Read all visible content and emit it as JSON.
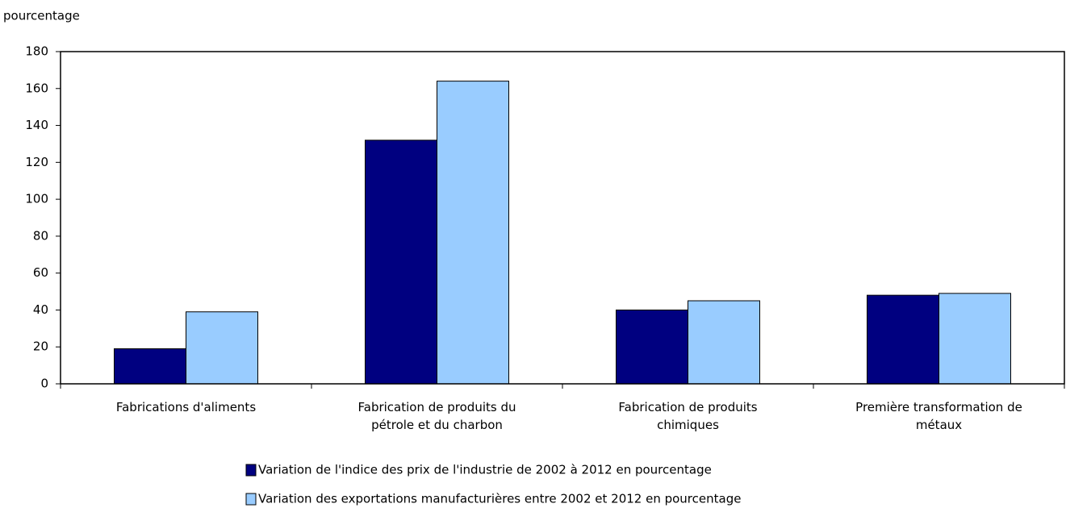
{
  "chart_data": {
    "type": "bar",
    "y_axis_label": "pourcentage",
    "categories": [
      "Fabrications d'aliments",
      "Fabrication de produits du\npétrole et du charbon",
      "Fabrication de produits\nchimiques",
      "Première transformation de\nmétaux"
    ],
    "series": [
      {
        "name": "Variation de l'indice des prix de l'industrie de 2002 à 2012 en pourcentage",
        "color": "#000080",
        "values": [
          19,
          132,
          40,
          48
        ]
      },
      {
        "name": "Variation des exportations manufacturières entre 2002 et 2012 en pourcentage",
        "color": "#99ccff",
        "values": [
          39,
          164,
          45,
          49
        ]
      }
    ],
    "ylim": [
      0,
      180
    ],
    "yticks": [
      0,
      20,
      40,
      60,
      80,
      100,
      120,
      140,
      160,
      180
    ],
    "grid": false
  }
}
